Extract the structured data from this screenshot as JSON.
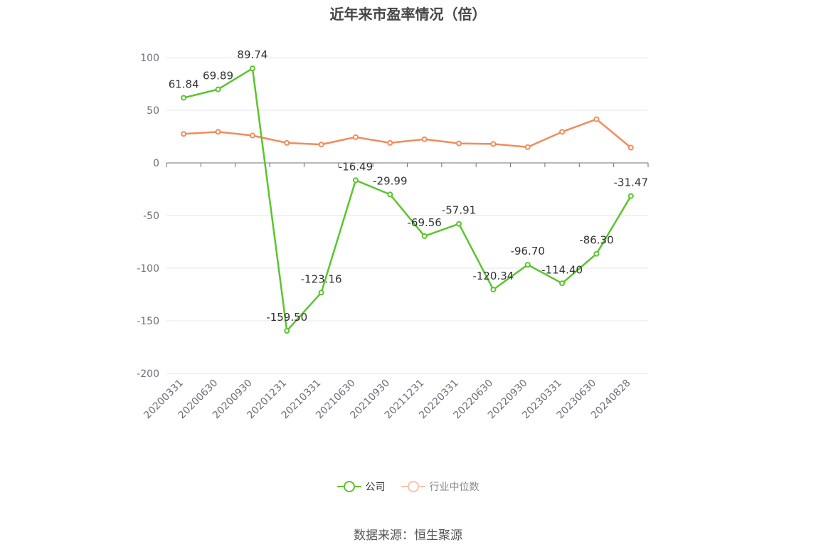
{
  "chart_data": {
    "type": "line",
    "title": "近年来市盈率情况（倍）",
    "categories": [
      "20200331",
      "20200630",
      "20200930",
      "20201231",
      "20210331",
      "20210630",
      "20210930",
      "20211231",
      "20220331",
      "20220630",
      "20220930",
      "20230331",
      "20230630",
      "20240828"
    ],
    "series": [
      {
        "name": "公司",
        "color": "#5ac52d",
        "values": [
          61.84,
          69.89,
          89.74,
          -159.5,
          -123.16,
          -16.49,
          -29.99,
          -69.56,
          -57.91,
          -120.34,
          -96.7,
          -114.4,
          -86.3,
          -31.47
        ],
        "labels": [
          "61.84",
          "69.89",
          "89.74",
          "-159.50",
          "-123.16",
          "-16.49",
          "-29.99",
          "-69.56",
          "-57.91",
          "-120.34",
          "-96.70",
          "-114.40",
          "-86.30",
          "-31.47"
        ]
      },
      {
        "name": "行业中位数",
        "color": "#f08c5a",
        "values": [
          27.5,
          29.5,
          26.0,
          19.0,
          17.5,
          24.5,
          19.0,
          22.5,
          18.5,
          18.0,
          15.0,
          29.5,
          41.5,
          14.5
        ]
      }
    ],
    "yticks": [
      "100",
      "50",
      "0",
      "-50",
      "-100",
      "-150",
      "-200"
    ],
    "ylim": [
      -200,
      100
    ],
    "grid": true,
    "legend_position": "bottom-center"
  },
  "source": "数据来源：恒生聚源"
}
